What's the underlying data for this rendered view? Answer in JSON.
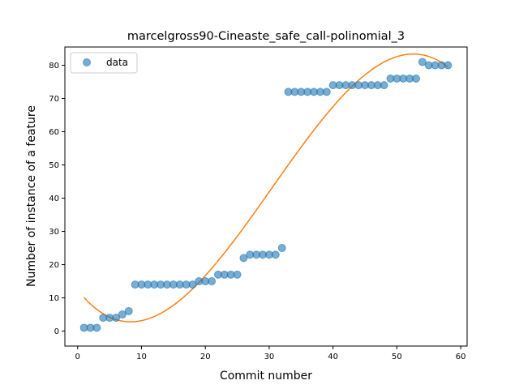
{
  "chart_data": {
    "type": "scatter",
    "title": "marcelgross90-Cineaste_safe_call-polinomial_3",
    "xlabel": "Commit number",
    "ylabel": "Number of instance of a feature",
    "xlim": [
      -2,
      61
    ],
    "ylim": [
      -4.5,
      85.5
    ],
    "xticks": [
      0,
      10,
      20,
      30,
      40,
      50,
      60
    ],
    "yticks": [
      0,
      10,
      20,
      30,
      40,
      50,
      60,
      70,
      80
    ],
    "grid": false,
    "legend": {
      "placement": "upper-left",
      "entries": [
        "data"
      ]
    },
    "colors": {
      "data": "#1f77b4",
      "fit": "#ff7f0e"
    },
    "series": [
      {
        "name": "data",
        "kind": "scatter",
        "x": [
          1,
          2,
          3,
          4,
          5,
          6,
          7,
          8,
          9,
          10,
          11,
          12,
          13,
          14,
          15,
          16,
          17,
          18,
          19,
          20,
          21,
          22,
          23,
          24,
          25,
          26,
          27,
          28,
          29,
          30,
          31,
          32,
          33,
          34,
          35,
          36,
          37,
          38,
          39,
          40,
          41,
          42,
          43,
          44,
          45,
          46,
          47,
          48,
          49,
          50,
          51,
          52,
          53,
          54,
          55,
          56,
          57,
          58
        ],
        "y": [
          1,
          1,
          1,
          4,
          4,
          4,
          5,
          6,
          14,
          14,
          14,
          14,
          14,
          14,
          14,
          14,
          14,
          14,
          15,
          15,
          15,
          17,
          17,
          17,
          17,
          22,
          23,
          23,
          23,
          23,
          23,
          25,
          72,
          72,
          72,
          72,
          72,
          72,
          72,
          74,
          74,
          74,
          74,
          74,
          74,
          74,
          74,
          74,
          76,
          76,
          76,
          76,
          76,
          81,
          80,
          80,
          80,
          80
        ]
      },
      {
        "kind": "line",
        "fit": "cubic polynomial",
        "coefficients": [
          12.35,
          -2.43,
          0.1695,
          -0.001856
        ]
      }
    ]
  }
}
